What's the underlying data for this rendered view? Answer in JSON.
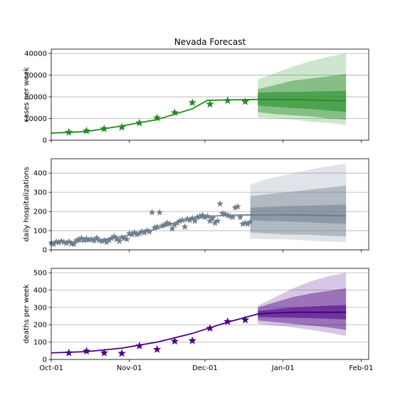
{
  "figure": {
    "title": "Nevada Forecast"
  },
  "chart_data": [
    {
      "type": "line",
      "title": "Nevada Forecast",
      "ylabel": "cases per week",
      "color": "#228b22",
      "grid": true,
      "xlim": [
        "2020-10-01",
        "2021-02-04"
      ],
      "ylim": [
        0,
        42000
      ],
      "yticks": [
        0,
        10000,
        20000,
        30000,
        40000
      ],
      "xticks": [
        {
          "date": "2020-10-01",
          "label": "Oct-01"
        },
        {
          "date": "2020-11-01",
          "label": "Nov-01"
        },
        {
          "date": "2020-12-01",
          "label": "Dec-01"
        },
        {
          "date": "2021-01-01",
          "label": "Jan-01"
        },
        {
          "date": "2021-02-01",
          "label": "Feb-01"
        }
      ],
      "fit": [
        [
          "2020-10-01",
          3300
        ],
        [
          "2020-10-15",
          4000
        ],
        [
          "2020-10-29",
          6600
        ],
        [
          "2020-11-12",
          9500
        ],
        [
          "2020-11-26",
          14500
        ],
        [
          "2020-12-02",
          18400
        ],
        [
          "2020-12-22",
          18800
        ]
      ],
      "forecast": {
        "x": [
          "2020-12-22",
          "2020-12-29",
          "2021-01-05",
          "2021-01-12",
          "2021-01-19",
          "2021-01-26"
        ],
        "median": [
          18800,
          18800,
          18700,
          18600,
          18300,
          18200
        ],
        "inner": {
          "lo": [
            16000,
            15400,
            14900,
            14400,
            13700,
            13000
          ],
          "hi": [
            22000,
            22200,
            22300,
            22400,
            22600,
            22800
          ]
        },
        "middle": {
          "lo": [
            13000,
            12000,
            11500,
            11000,
            10000,
            9500
          ],
          "hi": [
            23500,
            25500,
            27500,
            28500,
            29500,
            30500
          ]
        },
        "outer": {
          "lo": [
            10500,
            10000,
            9500,
            8500,
            8000,
            7000
          ],
          "hi": [
            28000,
            31000,
            34000,
            36500,
            38500,
            40000
          ]
        }
      },
      "observed": [
        [
          "2020-10-08",
          3700
        ],
        [
          "2020-10-15",
          4300
        ],
        [
          "2020-10-22",
          5300
        ],
        [
          "2020-10-29",
          6000
        ],
        [
          "2020-11-05",
          8000
        ],
        [
          "2020-11-12",
          10300
        ],
        [
          "2020-11-19",
          12700
        ],
        [
          "2020-11-26",
          17300
        ],
        [
          "2020-12-03",
          16600
        ],
        [
          "2020-12-10",
          18300
        ],
        [
          "2020-12-17",
          17800
        ]
      ]
    },
    {
      "type": "line",
      "ylabel": "daily hospitalizations",
      "color": "#708090",
      "grid": true,
      "xlim": [
        "2020-10-01",
        "2021-02-04"
      ],
      "ylim": [
        0,
        475
      ],
      "yticks": [
        0,
        100,
        200,
        300,
        400
      ],
      "xticks": [
        {
          "date": "2020-10-01",
          "label": ""
        },
        {
          "date": "2020-11-01",
          "label": ""
        },
        {
          "date": "2020-12-01",
          "label": ""
        },
        {
          "date": "2021-01-01",
          "label": ""
        },
        {
          "date": "2021-02-01",
          "label": ""
        }
      ],
      "fit": [
        [
          "2020-10-01",
          40
        ],
        [
          "2020-10-08",
          40
        ],
        [
          "2020-10-15",
          45
        ],
        [
          "2020-10-22",
          55
        ],
        [
          "2020-10-29",
          70
        ],
        [
          "2020-11-05",
          85
        ],
        [
          "2020-11-12",
          110
        ],
        [
          "2020-11-19",
          140
        ],
        [
          "2020-11-26",
          160
        ],
        [
          "2020-12-03",
          175
        ],
        [
          "2020-12-10",
          180
        ],
        [
          "2020-12-17",
          182
        ],
        [
          "2020-12-31",
          182
        ],
        [
          "2021-01-26",
          176
        ]
      ],
      "forecast": {
        "x": [
          "2020-12-19",
          "2020-12-26",
          "2021-01-02",
          "2021-01-09",
          "2021-01-16",
          "2021-01-26"
        ],
        "median": [
          180,
          182,
          183,
          183,
          181,
          178
        ],
        "inner": {
          "lo": [
            155,
            150,
            148,
            145,
            140,
            135
          ],
          "hi": [
            220,
            225,
            228,
            230,
            232,
            235
          ]
        },
        "middle": {
          "lo": [
            90,
            85,
            80,
            80,
            75,
            70
          ],
          "hi": [
            280,
            290,
            300,
            310,
            320,
            335
          ]
        },
        "outer": {
          "lo": [
            60,
            55,
            55,
            50,
            45,
            40
          ],
          "hi": [
            340,
            370,
            390,
            410,
            430,
            450
          ]
        }
      },
      "observed": [
        [
          "2020-10-01",
          35
        ],
        [
          "2020-10-02",
          30
        ],
        [
          "2020-10-03",
          42
        ],
        [
          "2020-10-04",
          38
        ],
        [
          "2020-10-05",
          45
        ],
        [
          "2020-10-06",
          40
        ],
        [
          "2020-10-07",
          35
        ],
        [
          "2020-10-08",
          42
        ],
        [
          "2020-10-09",
          32
        ],
        [
          "2020-10-10",
          30
        ],
        [
          "2020-10-11",
          48
        ],
        [
          "2020-10-12",
          55
        ],
        [
          "2020-10-13",
          60
        ],
        [
          "2020-10-14",
          50
        ],
        [
          "2020-10-15",
          58
        ],
        [
          "2020-10-16",
          52
        ],
        [
          "2020-10-17",
          55
        ],
        [
          "2020-10-18",
          48
        ],
        [
          "2020-10-19",
          62
        ],
        [
          "2020-10-20",
          50
        ],
        [
          "2020-10-21",
          45
        ],
        [
          "2020-10-22",
          48
        ],
        [
          "2020-10-23",
          40
        ],
        [
          "2020-10-24",
          50
        ],
        [
          "2020-10-25",
          60
        ],
        [
          "2020-10-26",
          70
        ],
        [
          "2020-10-27",
          55
        ],
        [
          "2020-10-28",
          45
        ],
        [
          "2020-10-29",
          65
        ],
        [
          "2020-10-30",
          60
        ],
        [
          "2020-10-31",
          55
        ],
        [
          "2020-11-01",
          85
        ],
        [
          "2020-11-02",
          80
        ],
        [
          "2020-11-03",
          90
        ],
        [
          "2020-11-04",
          80
        ],
        [
          "2020-11-05",
          85
        ],
        [
          "2020-11-06",
          95
        ],
        [
          "2020-11-07",
          90
        ],
        [
          "2020-11-08",
          100
        ],
        [
          "2020-11-09",
          95
        ],
        [
          "2020-11-10",
          195
        ],
        [
          "2020-11-11",
          115
        ],
        [
          "2020-11-12",
          120
        ],
        [
          "2020-11-13",
          195
        ],
        [
          "2020-11-14",
          125
        ],
        [
          "2020-11-15",
          130
        ],
        [
          "2020-11-16",
          140
        ],
        [
          "2020-11-17",
          135
        ],
        [
          "2020-11-18",
          110
        ],
        [
          "2020-11-19",
          130
        ],
        [
          "2020-11-20",
          140
        ],
        [
          "2020-11-21",
          150
        ],
        [
          "2020-11-22",
          155
        ],
        [
          "2020-11-23",
          120
        ],
        [
          "2020-11-24",
          160
        ],
        [
          "2020-11-25",
          155
        ],
        [
          "2020-11-26",
          165
        ],
        [
          "2020-11-27",
          150
        ],
        [
          "2020-11-28",
          170
        ],
        [
          "2020-11-29",
          175
        ],
        [
          "2020-11-30",
          180
        ],
        [
          "2020-12-01",
          170
        ],
        [
          "2020-12-02",
          175
        ],
        [
          "2020-12-03",
          150
        ],
        [
          "2020-12-04",
          165
        ],
        [
          "2020-12-05",
          140
        ],
        [
          "2020-12-06",
          150
        ],
        [
          "2020-12-07",
          240
        ],
        [
          "2020-12-08",
          190
        ],
        [
          "2020-12-09",
          185
        ],
        [
          "2020-12-10",
          180
        ],
        [
          "2020-12-11",
          175
        ],
        [
          "2020-12-12",
          170
        ],
        [
          "2020-12-13",
          220
        ],
        [
          "2020-12-14",
          225
        ],
        [
          "2020-12-15",
          170
        ],
        [
          "2020-12-16",
          135
        ],
        [
          "2020-12-17",
          140
        ],
        [
          "2020-12-18",
          135
        ],
        [
          "2020-12-19",
          145
        ]
      ]
    },
    {
      "type": "line",
      "ylabel": "deaths per week",
      "color": "#4b0082",
      "grid": true,
      "xlim": [
        "2020-10-01",
        "2021-02-04"
      ],
      "ylim": [
        0,
        525
      ],
      "yticks": [
        0,
        100,
        200,
        300,
        400,
        500
      ],
      "xticks": [
        {
          "date": "2020-10-01",
          "label": "Oct-01"
        },
        {
          "date": "2020-11-01",
          "label": "Nov-01"
        },
        {
          "date": "2020-12-01",
          "label": "Dec-01"
        },
        {
          "date": "2021-01-01",
          "label": "Jan-01"
        },
        {
          "date": "2021-02-01",
          "label": "Feb-01"
        }
      ],
      "fit": [
        [
          "2020-10-01",
          38
        ],
        [
          "2020-10-15",
          45
        ],
        [
          "2020-10-29",
          65
        ],
        [
          "2020-11-12",
          100
        ],
        [
          "2020-11-26",
          150
        ],
        [
          "2020-12-10",
          215
        ],
        [
          "2020-12-22",
          262
        ],
        [
          "2020-12-29",
          268
        ],
        [
          "2021-01-05",
          272
        ],
        [
          "2021-01-26",
          272
        ]
      ],
      "forecast": {
        "x": [
          "2020-12-22",
          "2020-12-29",
          "2021-01-05",
          "2021-01-12",
          "2021-01-19",
          "2021-01-26"
        ],
        "median": [
          262,
          268,
          272,
          272,
          272,
          272
        ],
        "inner": {
          "lo": [
            245,
            242,
            240,
            238,
            235,
            230
          ],
          "hi": [
            280,
            290,
            300,
            305,
            310,
            315
          ]
        },
        "middle": {
          "lo": [
            225,
            215,
            205,
            195,
            185,
            170
          ],
          "hi": [
            300,
            330,
            360,
            380,
            395,
            410
          ]
        },
        "outer": {
          "lo": [
            205,
            195,
            185,
            170,
            155,
            135
          ],
          "hi": [
            310,
            360,
            410,
            450,
            480,
            500
          ]
        }
      },
      "observed": [
        [
          "2020-10-08",
          38
        ],
        [
          "2020-10-15",
          48
        ],
        [
          "2020-10-22",
          38
        ],
        [
          "2020-10-29",
          35
        ],
        [
          "2020-11-05",
          78
        ],
        [
          "2020-11-12",
          58
        ],
        [
          "2020-11-19",
          105
        ],
        [
          "2020-11-26",
          108
        ],
        [
          "2020-12-03",
          180
        ],
        [
          "2020-12-10",
          218
        ],
        [
          "2020-12-17",
          228
        ]
      ]
    }
  ]
}
